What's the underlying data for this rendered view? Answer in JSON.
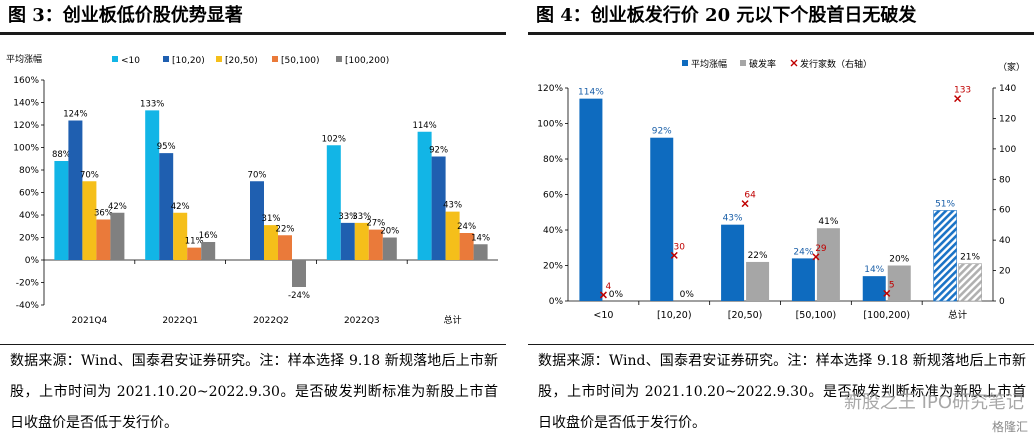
{
  "left": {
    "title": "图 3：创业板低价股优势显著",
    "note": "数据来源：Wind、国泰君安证券研究。注：样本选择 9.18 新规落地后上市新股，上市时间为 2021.10.20~2022.9.30。是否破发判断标准为新股上市首日收盘价是否低于发行价。"
  },
  "right": {
    "title": "图 4：创业板发行价 20 元以下个股首日无破发",
    "note": "数据来源：Wind、国泰君安证券研究。注：样本选择 9.18 新规落地后上市新股，上市时间为 2021.10.20~2022.9.30。是否破发判断标准为新股上市首日收盘价是否低于发行价。"
  },
  "watermark": {
    "text": "新股之王 IPO研究笔记",
    "logo": "格隆汇"
  },
  "chart_data": [
    {
      "type": "bar",
      "ylabel": "平均涨幅",
      "ylim": [
        -40,
        160
      ],
      "yticks": [
        "-40%",
        "-20%",
        "0%",
        "20%",
        "40%",
        "60%",
        "80%",
        "100%",
        "120%",
        "140%",
        "160%"
      ],
      "categories": [
        "2021Q4",
        "2022Q1",
        "2022Q2",
        "2022Q3",
        "总计"
      ],
      "series": [
        {
          "name": "<10",
          "color": "#12b5e6",
          "values": [
            88,
            133,
            null,
            102,
            114
          ],
          "labels": [
            "88%",
            "133%",
            "",
            "102%",
            "114%"
          ]
        },
        {
          "name": "[10,20)",
          "color": "#1f5fb0",
          "values": [
            124,
            95,
            70,
            33,
            92
          ],
          "labels": [
            "124%",
            "95%",
            "70%",
            "33%",
            "92%"
          ]
        },
        {
          "name": "[20,50)",
          "color": "#f5bf1a",
          "values": [
            70,
            42,
            31,
            33,
            43
          ],
          "labels": [
            "70%",
            "42%",
            "31%",
            "33%",
            "43%"
          ]
        },
        {
          "name": "[50,100)",
          "color": "#ea7a3a",
          "values": [
            36,
            11,
            22,
            27,
            24
          ],
          "labels": [
            "36%",
            "11%",
            "22%",
            "27%",
            "24%"
          ]
        },
        {
          "name": "[100,200)",
          "color": "#808080",
          "values": [
            42,
            16,
            -24,
            20,
            14
          ],
          "labels": [
            "42%",
            "16%",
            "-24%",
            "20%",
            "14%"
          ]
        }
      ],
      "legend": "top",
      "grid": false
    },
    {
      "type": "bar",
      "ylabel_right": "（家）",
      "ylim": [
        0,
        120
      ],
      "ylim_right": [
        0,
        140
      ],
      "yticks": [
        "0%",
        "20%",
        "40%",
        "60%",
        "80%",
        "100%",
        "120%"
      ],
      "yticks_right": [
        "0",
        "20",
        "40",
        "60",
        "80",
        "100",
        "120",
        "140"
      ],
      "categories": [
        "<10",
        "[10,20)",
        "[20,50)",
        "[50,100)",
        "[100,200)",
        "总计"
      ],
      "series": [
        {
          "name": "平均涨幅",
          "color": "#0e6bbf",
          "values": [
            114,
            92,
            43,
            24,
            14,
            51
          ],
          "labels": [
            "114%",
            "92%",
            "43%",
            "24%",
            "14%",
            "51%"
          ]
        },
        {
          "name": "破发率",
          "color": "#a6a6a6",
          "values": [
            0,
            0,
            22,
            41,
            20,
            21
          ],
          "labels": [
            "0%",
            "0%",
            "22%",
            "41%",
            "20%",
            "21%"
          ]
        },
        {
          "name": "发行家数（右轴）",
          "color": "#c00000",
          "axis": "right",
          "values": [
            4,
            30,
            64,
            29,
            5,
            133
          ],
          "labels": [
            "4",
            "30",
            "64",
            "29",
            "5",
            "133"
          ]
        }
      ],
      "legend": "top",
      "grid": false
    }
  ]
}
